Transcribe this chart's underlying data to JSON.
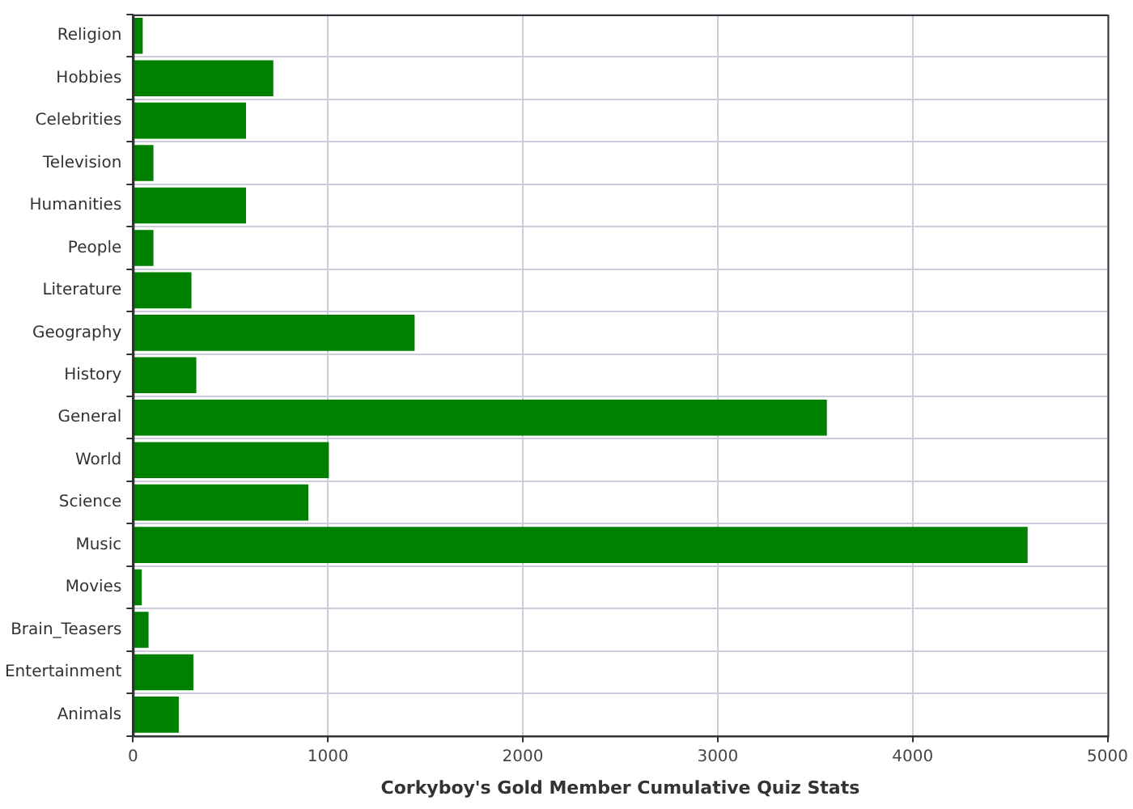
{
  "chart_data": {
    "type": "bar",
    "orientation": "horizontal",
    "xlabel": "Corkyboy's Gold Member Cumulative Quiz Stats",
    "categories": [
      "Religion",
      "Hobbies",
      "Celebrities",
      "Television",
      "Humanities",
      "People",
      "Literature",
      "Geography",
      "History",
      "General",
      "World",
      "Science",
      "Music",
      "Movies",
      "Brain_Teasers",
      "Entertainment",
      "Animals"
    ],
    "values": [
      50,
      720,
      580,
      105,
      580,
      105,
      300,
      1445,
      325,
      3560,
      1005,
      900,
      4590,
      45,
      80,
      310,
      235
    ],
    "color": "#008000",
    "xlim": [
      0,
      5000
    ],
    "xticks": [
      0,
      1000,
      2000,
      3000,
      4000,
      5000
    ],
    "grid": true,
    "legend": false
  }
}
